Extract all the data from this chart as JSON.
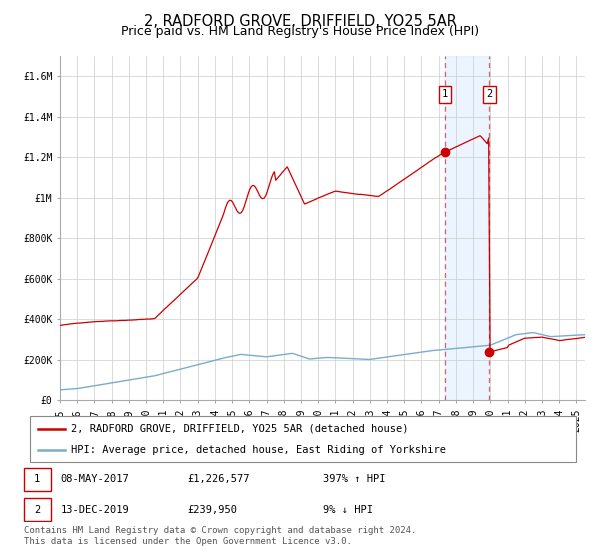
{
  "title": "2, RADFORD GROVE, DRIFFIELD, YO25 5AR",
  "subtitle": "Price paid vs. HM Land Registry's House Price Index (HPI)",
  "xlim": [
    1995.0,
    2025.5
  ],
  "ylim": [
    0,
    1700000
  ],
  "yticks": [
    0,
    200000,
    400000,
    600000,
    800000,
    1000000,
    1200000,
    1400000,
    1600000
  ],
  "ytick_labels": [
    "£0",
    "£200K",
    "£400K",
    "£600K",
    "£800K",
    "£1M",
    "£1.2M",
    "£1.4M",
    "£1.6M"
  ],
  "xticks": [
    1995,
    1996,
    1997,
    1998,
    1999,
    2000,
    2001,
    2002,
    2003,
    2004,
    2005,
    2006,
    2007,
    2008,
    2009,
    2010,
    2011,
    2012,
    2013,
    2014,
    2015,
    2016,
    2017,
    2018,
    2019,
    2020,
    2021,
    2022,
    2023,
    2024,
    2025
  ],
  "sale1_x": 2017.354,
  "sale1_y": 1226577,
  "sale2_x": 2019.95,
  "sale2_y": 239950,
  "shade_color": "#ddeeff",
  "red_line_color": "#cc0000",
  "blue_line_color": "#7aaccc",
  "vline_color": "#cc0000",
  "legend_entries": [
    "2, RADFORD GROVE, DRIFFIELD, YO25 5AR (detached house)",
    "HPI: Average price, detached house, East Riding of Yorkshire"
  ],
  "table_rows": [
    [
      "1",
      "08-MAY-2017",
      "£1,226,577",
      "397% ↑ HPI"
    ],
    [
      "2",
      "13-DEC-2019",
      "£239,950",
      "9% ↓ HPI"
    ]
  ],
  "footnote": "Contains HM Land Registry data © Crown copyright and database right 2024.\nThis data is licensed under the Open Government Licence v3.0.",
  "title_fontsize": 10.5,
  "subtitle_fontsize": 9,
  "tick_fontsize": 7,
  "legend_fontsize": 7.5,
  "table_fontsize": 7.5,
  "footnote_fontsize": 6.5
}
